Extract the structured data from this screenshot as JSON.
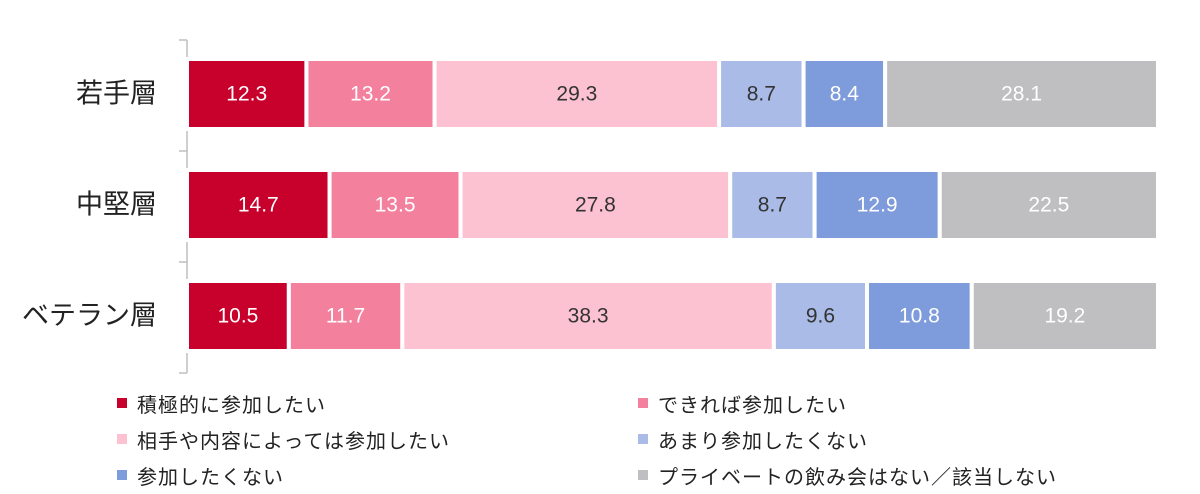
{
  "chart_data": {
    "type": "bar",
    "orientation": "horizontal",
    "stacked": true,
    "percent": true,
    "categories": [
      "若手層",
      "中堅層",
      "ベテラン層"
    ],
    "series": [
      {
        "name": "積極的に参加したい",
        "color": "#C8002C",
        "label_color": "#ffffff",
        "values": [
          12.3,
          14.7,
          10.5
        ]
      },
      {
        "name": "できれば参加したい",
        "color": "#F3819E",
        "label_color": "#ffffff",
        "values": [
          13.2,
          13.5,
          11.7
        ]
      },
      {
        "name": "相手や内容によっては参加したい",
        "color": "#FDC2D2",
        "label_color": "#333333",
        "values": [
          29.3,
          27.8,
          38.3
        ]
      },
      {
        "name": "あまり参加したくない",
        "color": "#A9BBE6",
        "label_color": "#333333",
        "values": [
          8.7,
          8.7,
          9.6
        ]
      },
      {
        "name": "参加したくない",
        "color": "#7E9BDB",
        "label_color": "#ffffff",
        "values": [
          8.4,
          12.9,
          10.8
        ]
      },
      {
        "name": "プライベートの飲み会はない／該当しない",
        "color": "#BFBEC0",
        "label_color": "#ffffff",
        "values": [
          28.1,
          22.5,
          19.2
        ]
      }
    ],
    "value_labels": [
      [
        "12.3",
        "14.7",
        "10.5"
      ],
      [
        "13.2",
        "13.5",
        "11.7"
      ],
      [
        "29.3",
        "27.8",
        "38.3"
      ],
      [
        "8.7",
        "8.7",
        "9.6"
      ],
      [
        "8.4",
        "12.9",
        "10.8"
      ],
      [
        "28.1",
        "22.5",
        "19.2"
      ]
    ],
    "legend_position": "bottom",
    "grid": false
  }
}
